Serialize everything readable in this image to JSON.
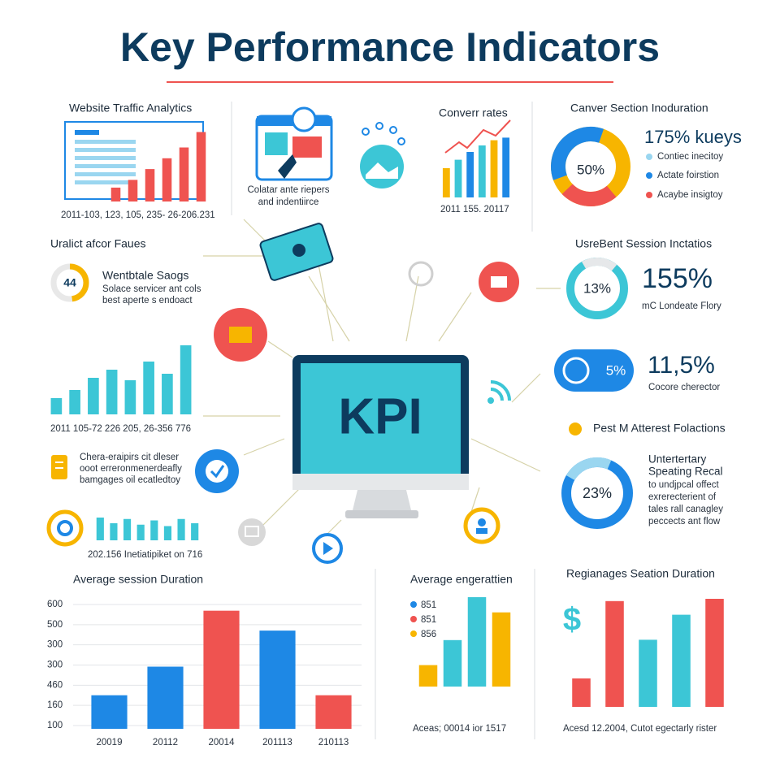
{
  "title": "Key Performance Indicators",
  "center_label": "KPI",
  "traffic": {
    "title": "Website Traffic Analytics",
    "caption": "2011-103, 123, 105, 235- 26-206.231",
    "values": [
      18,
      28,
      42,
      56,
      70,
      90
    ],
    "color": "#ef5350"
  },
  "browser": {
    "caption": [
      "Colatar ante riepers",
      "and indentiirce"
    ]
  },
  "conversion": {
    "title": "Converr rates",
    "caption": "2011 155. 20117",
    "values": [
      45,
      58,
      70,
      80,
      88,
      92
    ],
    "colors": [
      "#f7b500",
      "#3cc6d6",
      "#1e88e5",
      "#3cc6d6",
      "#f7b500",
      "#1e88e5"
    ]
  },
  "section": {
    "title": "Canver Section Inoduration",
    "center": "50%",
    "headline": "175% kueys",
    "legend": [
      "Contiec inecitoy",
      "Actate foirstion",
      "Acaybe insigtoy"
    ]
  },
  "faues": {
    "title": "Uralict afcor Faues",
    "badge": "44",
    "heading": "Wentbtale Saogs",
    "lines": [
      "Solace servicer ant cols",
      "best aperte s endoact"
    ]
  },
  "session_rate": {
    "title": "UsreBent Session Inctatios",
    "center": "13%",
    "headline": "155%",
    "caption": "mC Londeate Flory"
  },
  "trend": {
    "caption": "2011 105-72 226 205, 26-356 776",
    "values": [
      20,
      30,
      45,
      55,
      42,
      65,
      50,
      85
    ],
    "color": "#3cc6d6"
  },
  "timer": {
    "badge": "5%",
    "headline": "11,5%",
    "caption": "Cocore cherector"
  },
  "interest": {
    "title": "Pest M Atterest Folactions",
    "center": "23%",
    "heading": [
      "Untertertary",
      "Speating Recal"
    ],
    "lines": [
      "to undjpcal offect",
      "exrerecterient of",
      "tales rall canagley",
      "peccects ant flow"
    ]
  },
  "notes": {
    "lines": [
      "Chera-eraipirs cit dleser",
      "ooot erreronmenerdeafly",
      "bamgages oil ecatledtoy"
    ]
  },
  "gear": {
    "caption": "202.156 Inetiatipiket on 716",
    "values": [
      80,
      60,
      75,
      55,
      70,
      50,
      75,
      60
    ],
    "color": "#3cc6d6"
  },
  "duration": {
    "title": "Average session Duration",
    "axis_labels": [
      "600",
      "500",
      "300",
      "300",
      "460",
      "160",
      "100"
    ],
    "categories": [
      "20019",
      "20112",
      "20014",
      "201113",
      "210113"
    ],
    "values": [
      27,
      50,
      95,
      79,
      27
    ],
    "colors": [
      "#1e88e5",
      "#1e88e5",
      "#ef5350",
      "#1e88e5",
      "#ef5350"
    ]
  },
  "engagement": {
    "title": "Average engerattien",
    "legend": [
      "851",
      "851",
      "856"
    ],
    "legend_colors": [
      "#1e88e5",
      "#ef5350",
      "#f7b500"
    ],
    "caption": "Aceas; 00014 ior 1517",
    "values": [
      24,
      52,
      100,
      83
    ],
    "colors": [
      "#f7b500",
      "#3cc6d6",
      "#3cc6d6",
      "#f7b500"
    ]
  },
  "regional": {
    "title": "Regianages Seation Duration",
    "symbol": "$",
    "caption": "Acesd 12.2004, Cutot egectarly rister",
    "values": [
      25,
      93,
      59,
      81,
      95
    ],
    "colors": [
      "#ef5350",
      "#ef5350",
      "#3cc6d6",
      "#3cc6d6",
      "#ef5350"
    ]
  }
}
